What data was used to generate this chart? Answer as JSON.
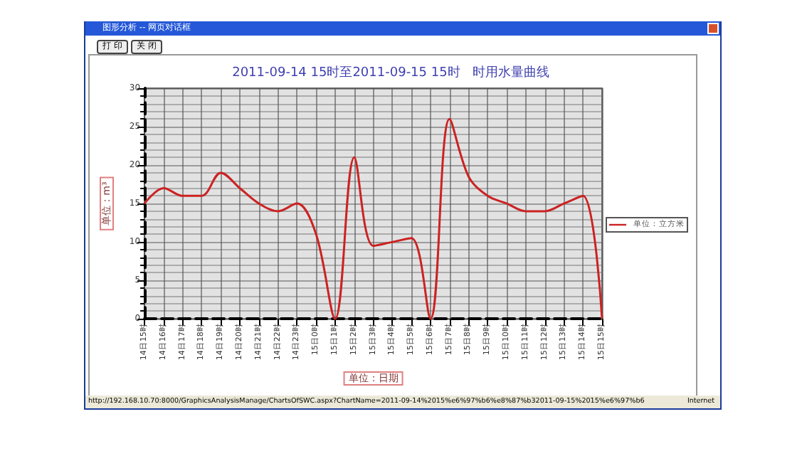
{
  "chart_data": {
    "type": "line",
    "title": "2011-09-14 15时至2011-09-15 15时   时用水量曲线",
    "xlabel": "单位：日期",
    "ylabel": "单位：m³",
    "categories": [
      "14日15时",
      "14日16时",
      "14日17时",
      "14日18时",
      "14日19时",
      "14日20时",
      "14日21时",
      "14日22时",
      "14日23时",
      "15日0时",
      "15日1时",
      "15日2时",
      "15日3时",
      "15日4时",
      "15日5时",
      "15日6时",
      "15日7时",
      "15日8时",
      "15日9时",
      "15日10时",
      "15日11时",
      "15日12时",
      "15日13时",
      "15日14时",
      "15日15时"
    ],
    "series": [
      {
        "name": "单位：立方米",
        "color": "#cc2222",
        "values": [
          15,
          17,
          16,
          16,
          19,
          17,
          15,
          14,
          15,
          11,
          0,
          21,
          9.5,
          10,
          10.5,
          0,
          26,
          18.5,
          16,
          15,
          14,
          14,
          15,
          16,
          0
        ]
      }
    ],
    "ylim": [
      0,
      30
    ],
    "yticks": [
      0,
      5,
      10,
      15,
      20,
      25,
      30
    ],
    "grid": true,
    "legend": "right",
    "marker": "none",
    "line_style": "solid",
    "annotations": [
      "图形分析 -- 网页对话框",
      "打 印",
      "关 闭",
      "http://192.168.10.70:8000/GraphicsAnalysisManage/ChartsOfSWC.aspx?ChartName=2011-09-14%2015%e6%97%b6%e8%87%b32011-09-15%2015%e6%97%b6",
      "Internet"
    ]
  }
}
